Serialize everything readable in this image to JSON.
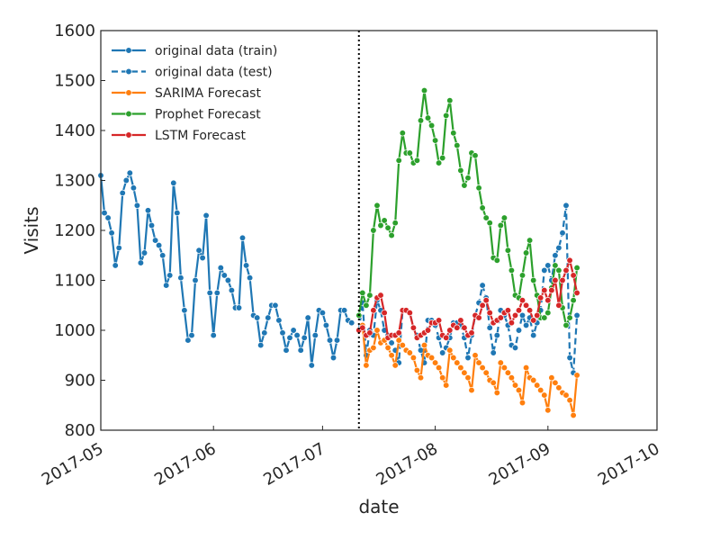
{
  "chart_data": {
    "type": "line",
    "xlabel": "date",
    "ylabel": "Visits",
    "xlim": [
      "2017-05-01",
      "2017-10-01"
    ],
    "ylim": [
      800,
      1600
    ],
    "x_ticks": [
      "2017-05",
      "2017-06",
      "2017-07",
      "2017-08",
      "2017-09",
      "2017-10"
    ],
    "y_ticks": [
      800,
      900,
      1000,
      1100,
      1200,
      1300,
      1400,
      1500,
      1600
    ],
    "grid": false,
    "legend_position": "top-left",
    "split_date": "2017-07-11",
    "series": [
      {
        "name": "original data (train)",
        "color": "#1f77b4",
        "dashed": false,
        "start_date": "2017-05-01",
        "values": [
          1310,
          1235,
          1225,
          1195,
          1130,
          1165,
          1275,
          1300,
          1315,
          1285,
          1250,
          1135,
          1155,
          1240,
          1210,
          1180,
          1170,
          1150,
          1090,
          1110,
          1295,
          1235,
          1105,
          1040,
          980,
          990,
          1100,
          1160,
          1145,
          1230,
          1075,
          990,
          1075,
          1125,
          1110,
          1100,
          1080,
          1045,
          1045,
          1185,
          1130,
          1105,
          1030,
          1025,
          970,
          995,
          1025,
          1050,
          1050,
          1020,
          995,
          960,
          985,
          1000,
          990,
          960,
          985,
          1025,
          930,
          990,
          1040,
          1035,
          1010,
          980,
          945,
          980,
          1040,
          1040,
          1020,
          1015
        ]
      },
      {
        "name": "original data (test)",
        "color": "#1f77b4",
        "dashed": true,
        "start_date": "2017-07-11",
        "values": [
          1000,
          1055,
          950,
          1000,
          990,
          1060,
          1040,
          1000,
          990,
          975,
          960,
          935,
          1040,
          1040,
          1035,
          1005,
          990,
          960,
          935,
          1020,
          1020,
          1010,
          985,
          955,
          965,
          985,
          1015,
          1015,
          1010,
          985,
          945,
          990,
          1030,
          1055,
          1090,
          1065,
          1005,
          955,
          990,
          1040,
          1030,
          1010,
          970,
          965,
          1000,
          1030,
          1010,
          1025,
          990,
          1015,
          1040,
          1120,
          1130,
          1100,
          1150,
          1165,
          1195,
          1250,
          945,
          915,
          1030
        ]
      },
      {
        "name": "SARIMA Forecast",
        "color": "#ff7f0e",
        "dashed": false,
        "start_date": "2017-07-11",
        "values": [
          1000,
          1010,
          930,
          960,
          965,
          1000,
          975,
          980,
          965,
          950,
          930,
          980,
          970,
          960,
          955,
          945,
          920,
          905,
          970,
          950,
          945,
          935,
          925,
          905,
          890,
          960,
          945,
          935,
          925,
          915,
          905,
          880,
          950,
          935,
          925,
          915,
          900,
          895,
          875,
          935,
          925,
          915,
          905,
          890,
          880,
          855,
          925,
          905,
          900,
          890,
          880,
          870,
          840,
          905,
          895,
          885,
          875,
          870,
          860,
          830,
          910
        ]
      },
      {
        "name": "Prophet Forecast",
        "color": "#2ca02c",
        "dashed": false,
        "start_date": "2017-07-11",
        "values": [
          1030,
          1075,
          1050,
          1070,
          1200,
          1250,
          1210,
          1220,
          1205,
          1190,
          1215,
          1340,
          1395,
          1355,
          1355,
          1335,
          1340,
          1420,
          1480,
          1425,
          1410,
          1380,
          1335,
          1345,
          1430,
          1460,
          1395,
          1370,
          1320,
          1290,
          1305,
          1355,
          1350,
          1285,
          1245,
          1225,
          1215,
          1145,
          1140,
          1210,
          1225,
          1160,
          1120,
          1070,
          1065,
          1110,
          1155,
          1180,
          1100,
          1070,
          1025,
          1025,
          1035,
          1085,
          1130,
          1120,
          1045,
          1010,
          1025,
          1060,
          1125
        ]
      },
      {
        "name": "LSTM Forecast",
        "color": "#d62728",
        "dashed": false,
        "start_date": "2017-07-11",
        "values": [
          1000,
          1005,
          990,
          995,
          1040,
          1065,
          1070,
          1035,
          985,
          990,
          990,
          995,
          1040,
          1040,
          1035,
          1005,
          985,
          990,
          995,
          1000,
          1015,
          1015,
          1020,
          990,
          985,
          1000,
          1010,
          1005,
          1020,
          1005,
          990,
          995,
          1030,
          1025,
          1050,
          1060,
          1035,
          1015,
          1020,
          1025,
          1035,
          1040,
          1015,
          1030,
          1040,
          1060,
          1050,
          1040,
          1020,
          1030,
          1065,
          1080,
          1060,
          1080,
          1100,
          1050,
          1100,
          1120,
          1140,
          1110,
          1075
        ]
      }
    ]
  }
}
